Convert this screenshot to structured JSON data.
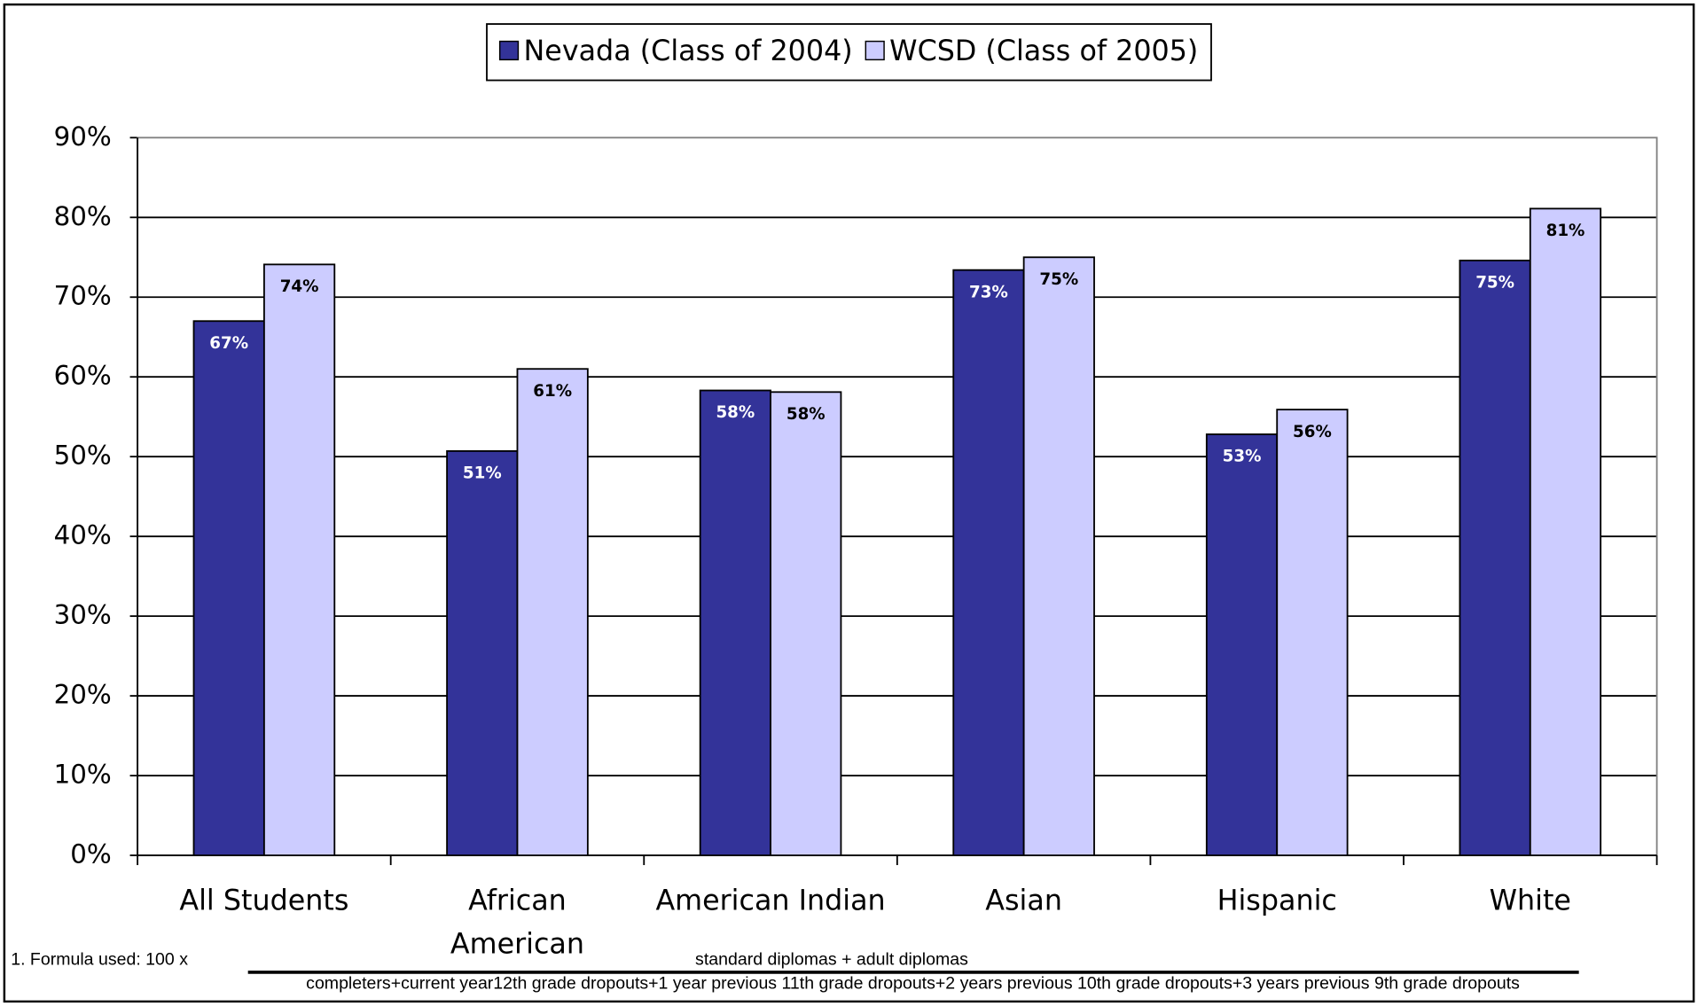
{
  "chart_data": {
    "type": "bar",
    "categories": [
      "All Students",
      "African American",
      "American Indian",
      "Asian",
      "Hispanic",
      "White"
    ],
    "series": [
      {
        "name": "Nevada (Class of 2004)",
        "color": "#333399",
        "values": [
          67,
          50.7,
          58.3,
          73.4,
          52.8,
          74.6
        ],
        "value_labels": [
          "67%",
          "51%",
          "58%",
          "73%",
          "53%",
          "75%"
        ]
      },
      {
        "name": "WCSD (Class of 2005)",
        "color": "#ccccff",
        "values": [
          74.1,
          61,
          58.1,
          75,
          55.9,
          81.1
        ],
        "value_labels": [
          "74%",
          "61%",
          "58%",
          "75%",
          "56%",
          "81%"
        ]
      }
    ],
    "ylim": [
      0,
      90
    ],
    "yticks": [
      {
        "value": 0,
        "label": "0%"
      },
      {
        "value": 10,
        "label": "10%"
      },
      {
        "value": 20,
        "label": "20%"
      },
      {
        "value": 30,
        "label": "30%"
      },
      {
        "value": 40,
        "label": "40%"
      },
      {
        "value": 50,
        "label": "50%"
      },
      {
        "value": 60,
        "label": "60%"
      },
      {
        "value": 70,
        "label": "70%"
      },
      {
        "value": 80,
        "label": "80%"
      },
      {
        "value": 90,
        "label": "90%"
      }
    ],
    "grid": true,
    "legend": "top"
  },
  "footnote": {
    "prefix": "1. Formula used: 100 x",
    "numerator": "standard diplomas + adult diplomas",
    "denominator": "completers+current year12th grade dropouts+1 year previous 11th grade dropouts+2 years previous 10th grade dropouts+3 years previous 9th grade dropouts"
  }
}
